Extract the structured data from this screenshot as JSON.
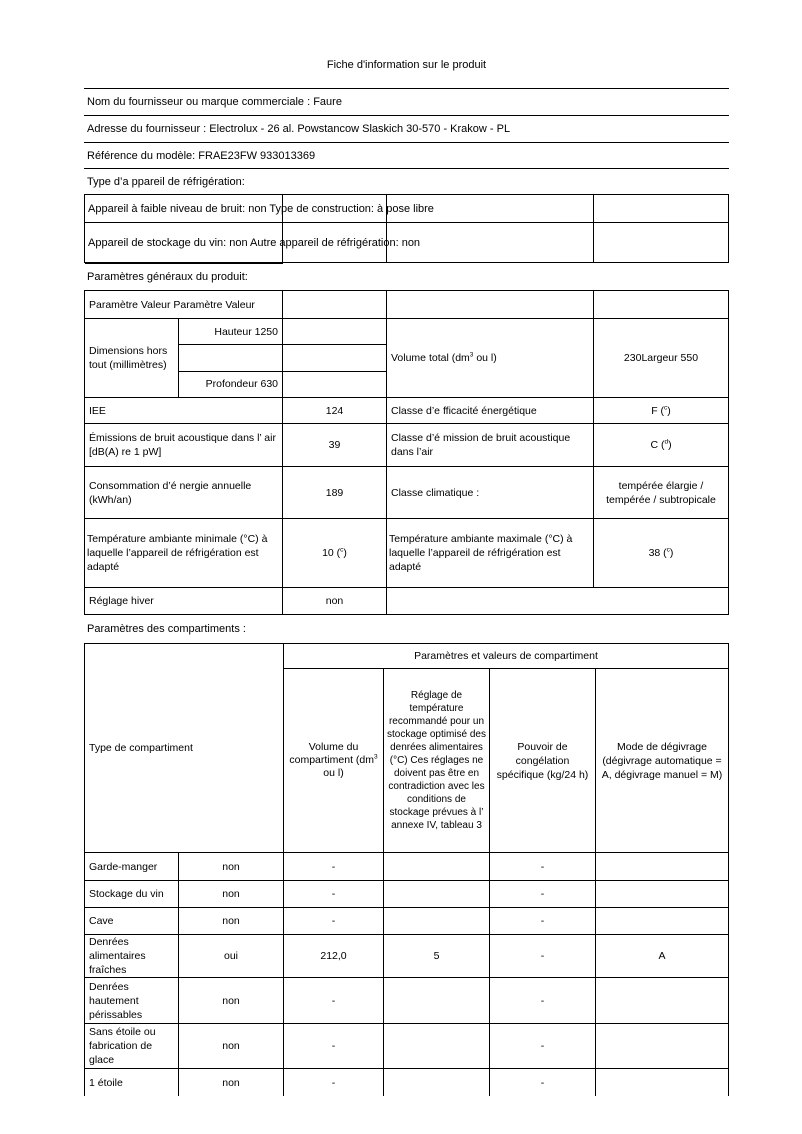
{
  "title": "Fiche d'information sur le produit",
  "supplier": {
    "nom": "Nom du fournisseur ou marque commerciale : Faure",
    "adresse": "Adresse du fournisseur : Electrolux - 26 al. Powstancow Slaskich 30-570 - Krakow - PL",
    "reference": "Référence du modèle: FRAE23FW 933013369",
    "type_label": "Type d’a ppareil de réfrigération:",
    "bruit_construction": "Appareil à faible niveau de bruit: non Type de construction: à pose libre",
    "stockage_autre": "Appareil de stockage du vin: non Autre appareil de réfrigération: non"
  },
  "general": {
    "section_label": "Paramètres généraux du produit:",
    "param_header": "Paramètre Valeur Paramètre Valeur",
    "dimensions_label": "Dimensions hors tout (millimètres)",
    "hauteur": "Hauteur 1250",
    "profondeur": "Profondeur 630",
    "volume_label": "Volume total (dm^3 ou l)",
    "volume_value": "230Largeur 550",
    "iee_label": "IEE",
    "iee_value": "124",
    "classe_energie_label": "Classe d’e fficacité énergétique",
    "classe_energie_value": "F (^c)",
    "bruit_label": "Émissions de bruit acoustique dans l’ air [dB(A) re 1 pW]",
    "bruit_value": "39",
    "classe_bruit_label": "Classe d’é mission de bruit acoustique dans l’air",
    "classe_bruit_value": "C (^d)",
    "conso_label": "Consommation d’é nergie annuelle (kWh/an)",
    "conso_value": "189",
    "classe_climatique_label": "Classe climatique :",
    "classe_climatique_value": "tempérée élargie / tempérée / subtropicale",
    "temp_min_label": "Température ambiante minimale (°C) à laquelle l’appareil de réfrigération est adapté",
    "temp_min_value": "10 (^c)",
    "temp_max_label": "Température ambiante maximale (°C) à laquelle l’appareil de réfrigération est adapté",
    "temp_max_value": "38 (^c)",
    "hiver_label": "Réglage hiver",
    "hiver_value": "non"
  },
  "compartments": {
    "section_label": "Paramètres des compartiments :",
    "span_header": "Paramètres et valeurs de compartiment",
    "headers": {
      "type": "Type de compartiment",
      "volume": "Volume du compartiment (dm^3 ou l)",
      "reglage": "Réglage de température recommandé pour un stockage optimisé des denrées alimentaires (°C) Ces réglages ne doivent pas être en contradiction avec les conditions de stockage prévues à l’ annexe IV, tableau 3",
      "pouvoir": "Pouvoir de congélation spécifique (kg/24 h)",
      "mode": "Mode de dégivrage (dégivrage automatique = A, dégivrage manuel = M)"
    },
    "rows": [
      {
        "name": "Garde-manger",
        "present": "non",
        "volume": "-",
        "reglage": "",
        "pouvoir": "-",
        "mode": ""
      },
      {
        "name": "Stockage du vin",
        "present": "non",
        "volume": "-",
        "reglage": "",
        "pouvoir": "-",
        "mode": ""
      },
      {
        "name": "Cave",
        "present": "non",
        "volume": "-",
        "reglage": "",
        "pouvoir": "-",
        "mode": ""
      },
      {
        "name": "Denrées alimentaires fraîches",
        "present": "oui",
        "volume": "212,0",
        "reglage": "5",
        "pouvoir": "-",
        "mode": "A"
      },
      {
        "name": "Denrées hautement périssables",
        "present": "non",
        "volume": "-",
        "reglage": "",
        "pouvoir": "-",
        "mode": ""
      },
      {
        "name": "Sans étoile ou fabrication de glace",
        "present": "non",
        "volume": "-",
        "reglage": "",
        "pouvoir": "-",
        "mode": ""
      },
      {
        "name": "1 étoile",
        "present": "non",
        "volume": "-",
        "reglage": "",
        "pouvoir": "-",
        "mode": ""
      }
    ]
  }
}
